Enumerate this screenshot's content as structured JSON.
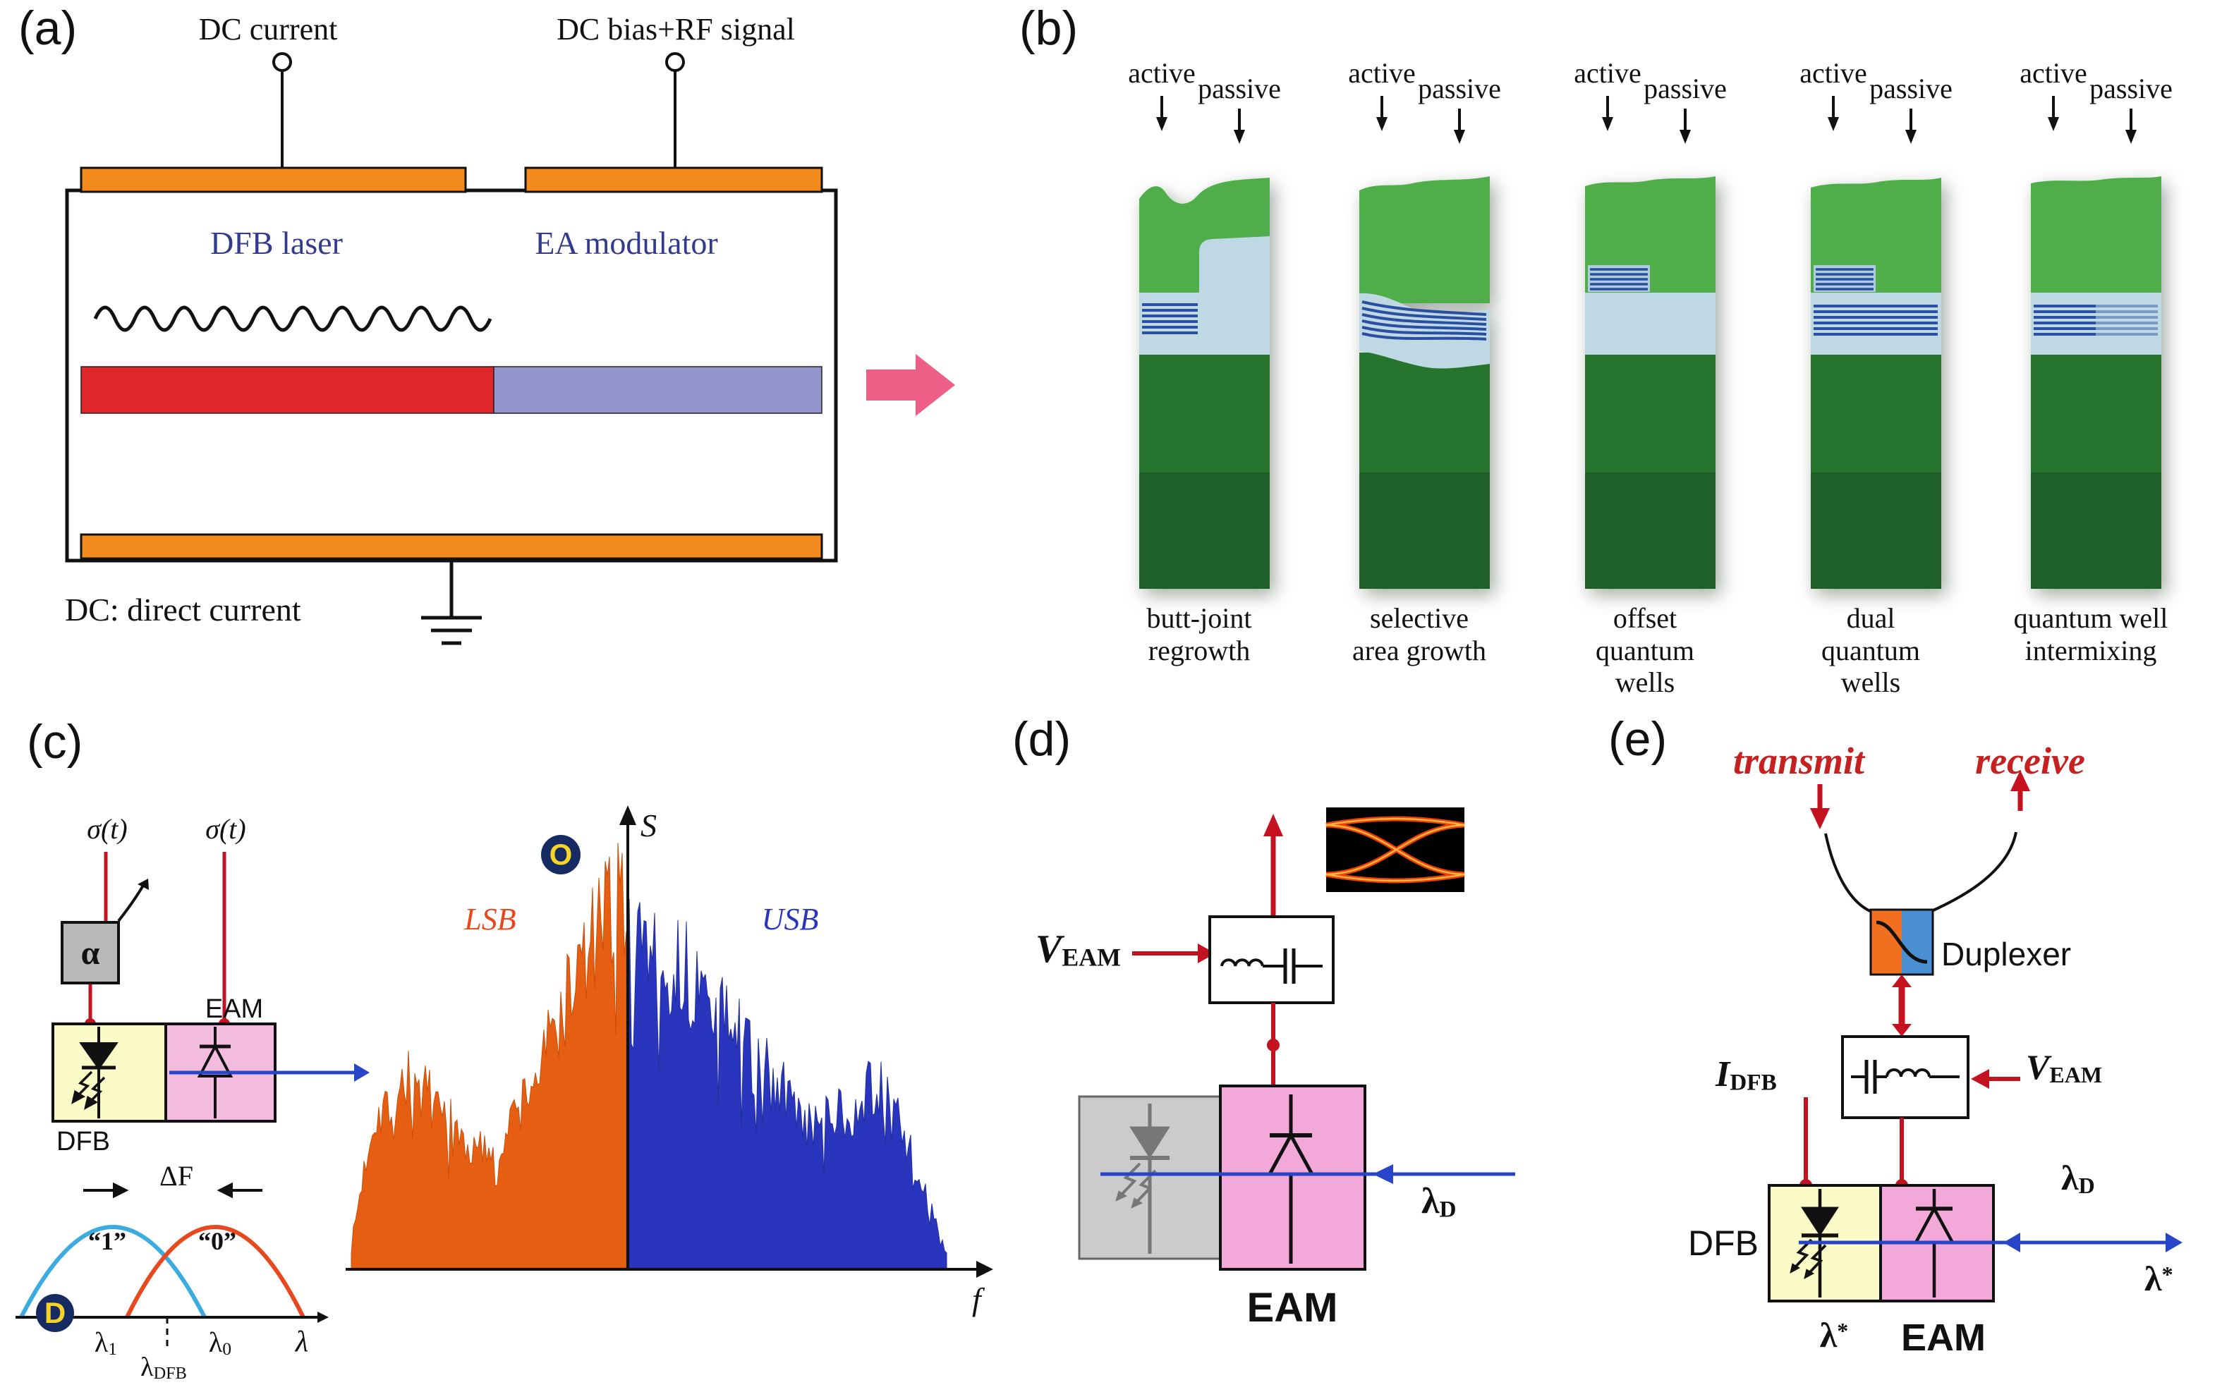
{
  "panels": {
    "a": {
      "label": "(a)",
      "dc_current": "DC current",
      "dc_bias_rf": "DC bias+RF signal",
      "dfb_laser": "DFB laser",
      "ea_modulator": "EA modulator",
      "footnote": "DC: direct current"
    },
    "b": {
      "label": "(b)",
      "active": "active",
      "passive": "passive",
      "chips": [
        {
          "caption1": "butt-joint",
          "caption2": "regrowth"
        },
        {
          "caption1": "selective",
          "caption2": "area growth"
        },
        {
          "caption1": "offset",
          "caption2": "quantum wells"
        },
        {
          "caption1": "dual",
          "caption2": "quantum wells"
        },
        {
          "caption1": "quantum well",
          "caption2": "intermixing"
        }
      ]
    },
    "c": {
      "label": "(c)",
      "sigma_left": "σ(t)",
      "sigma_right": "σ(t)",
      "alpha": "α",
      "eam": "EAM",
      "dfb": "DFB",
      "badge_o": "O",
      "badge_d": "D",
      "lsb": "LSB",
      "usb": "USB",
      "s_axis": "S",
      "f_axis": "f",
      "delta_f": "ΔF",
      "bit_one": "“1”",
      "bit_zero": "“0”",
      "lambda_one_base": "λ",
      "lambda_one_sub": "1",
      "lambda_zero_base": "λ",
      "lambda_zero_sub": "0",
      "lambda_axis": "λ",
      "lambda_dfb_base": "λ",
      "lambda_dfb_sub": "DFB"
    },
    "d": {
      "label": "(d)",
      "v_base": "V",
      "v_sub": "EAM",
      "lambda_d_base": "λ",
      "lambda_d_sub": "D",
      "eam": "EAM"
    },
    "e": {
      "label": "(e)",
      "transmit": "transmit",
      "receive": "receive",
      "duplexer": "Duplexer",
      "v_base": "V",
      "v_sub": "EAM",
      "i_base": "I",
      "i_sub": "DFB",
      "dfb": "DFB",
      "eam": "EAM",
      "lambda_d_base": "λ",
      "lambda_d_sub": "D",
      "lambda_star_base": "λ",
      "lambda_star_sup": "*"
    }
  },
  "colors": {
    "contact_orange": "#F28A1E",
    "active_red": "#E02629",
    "modulator_purple": "#9296CC",
    "arrow_pink": "#EE5F88",
    "signal_red": "#C41220",
    "optical_blue": "#2845C8",
    "dfb_yellow": "#FBFBC8",
    "eam_pink": "#F3A8DA",
    "inactive_gray": "#CBCBCB",
    "lsb_orange": "#E55E11",
    "usb_blue": "#2A35BD",
    "badge_navy": "#172B63",
    "badge_letter": "#F5D327",
    "chip_green_top": "#4FAE4A",
    "chip_green_bottom": "#27742F",
    "waveguide_blue": "#BFD9E4",
    "qw_stripe": "#2B4FA0",
    "heading_navy": "#333B8F"
  }
}
